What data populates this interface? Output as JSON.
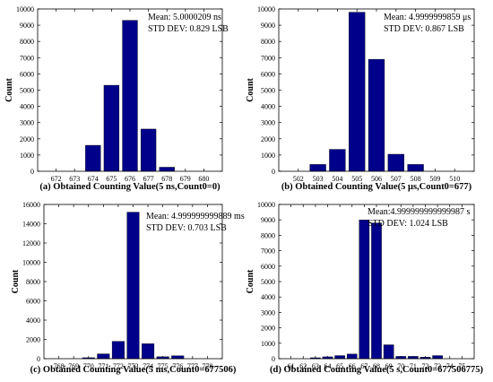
{
  "chart_data": [
    {
      "type": "bar",
      "ylabel": "Count",
      "caption": "(a) Obtained Counting Value(5 ns,Count0=0)",
      "annotations": [
        "Mean: 5.0000209 ns",
        "STD DEV: 0.829 LSB"
      ],
      "categories": [
        "672",
        "673",
        "674",
        "675",
        "676",
        "677",
        "678",
        "679",
        "680"
      ],
      "values": [
        0,
        0,
        1600,
        5300,
        9300,
        2600,
        250,
        0,
        0
      ],
      "ylim": [
        0,
        10000
      ],
      "yticks": [
        0,
        1000,
        2000,
        3000,
        4000,
        5000,
        6000,
        7000,
        8000,
        9000,
        10000
      ],
      "color": "#00008b"
    },
    {
      "type": "bar",
      "ylabel": "Count",
      "caption": "(b) Obtained Counting Value(5 μs,Count0=677)",
      "annotations": [
        "Mean: 4.9999999859 μs",
        "STD DEV: 0.867 LSB"
      ],
      "categories": [
        "502",
        "503",
        "504",
        "505",
        "506",
        "507",
        "508",
        "509",
        "510"
      ],
      "values": [
        0,
        420,
        1350,
        9800,
        6900,
        1050,
        420,
        0,
        0
      ],
      "ylim": [
        0,
        10000
      ],
      "yticks": [
        0,
        1000,
        2000,
        3000,
        4000,
        5000,
        6000,
        7000,
        8000,
        9000,
        10000
      ],
      "color": "#00008b"
    },
    {
      "type": "bar",
      "ylabel": "Count",
      "caption": "(c) Obtained Counting Value(5 ms,Count0=677506)",
      "annotations": [
        "Mean: 4.999999999889 ms",
        "STD DEV: 0.703 LSB"
      ],
      "categories": [
        "768",
        "769",
        "770",
        "771",
        "772",
        "773",
        "774",
        "775",
        "776",
        "777",
        "778"
      ],
      "values": [
        0,
        0,
        100,
        500,
        1800,
        15200,
        1550,
        200,
        300,
        0,
        0
      ],
      "ylim": [
        0,
        16000
      ],
      "yticks": [
        0,
        2000,
        4000,
        6000,
        8000,
        10000,
        12000,
        14000,
        16000
      ],
      "color": "#00008b"
    },
    {
      "type": "bar",
      "ylabel": "Count",
      "caption": "(d) Obtained Counting Value(5 s,Count0=677506775)",
      "annotations": [
        "Mean:4.999999999999987 s",
        "STD DEV: 1.024 LSB"
      ],
      "categories": [
        "61",
        "62",
        "63",
        "64",
        "65",
        "66",
        "67",
        "68",
        "69",
        "70",
        "71",
        "72",
        "73",
        "74",
        "75"
      ],
      "values": [
        0,
        0,
        60,
        120,
        200,
        300,
        9000,
        8800,
        900,
        150,
        150,
        100,
        200,
        0,
        0
      ],
      "ylim": [
        0,
        10000
      ],
      "yticks": [
        0,
        1000,
        2000,
        3000,
        4000,
        5000,
        6000,
        7000,
        8000,
        9000,
        10000
      ],
      "color": "#00008b"
    }
  ]
}
